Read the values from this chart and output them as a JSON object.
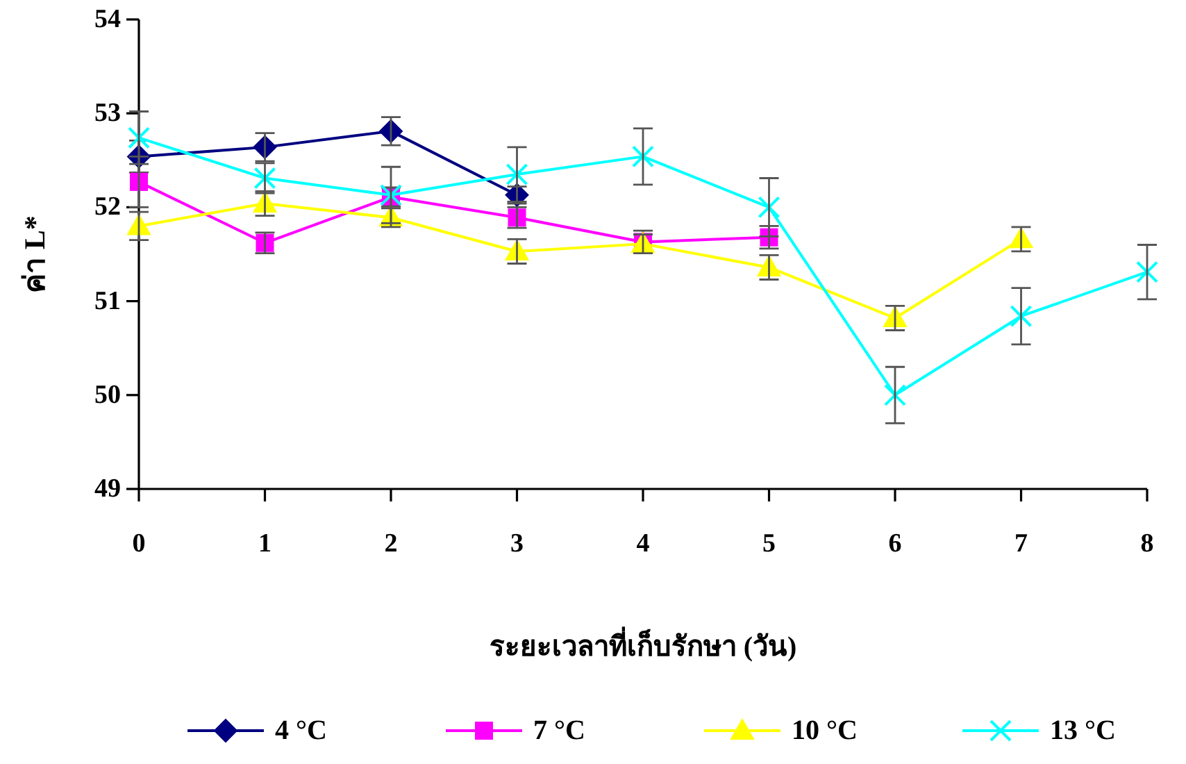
{
  "chart_data": {
    "type": "line",
    "xlabel": "ระยะเวลาที่เก็บรักษา (วัน)",
    "ylabel": "ค่า L*",
    "x": [
      0,
      1,
      2,
      3,
      4,
      5,
      6,
      7,
      8
    ],
    "xlim": [
      0,
      8
    ],
    "xticks": [
      0,
      1,
      2,
      3,
      4,
      5,
      6,
      7,
      8
    ],
    "ylim": [
      49,
      54
    ],
    "yticks": [
      49,
      50,
      51,
      52,
      53,
      54
    ],
    "legend": "bottom",
    "line_style": "solid",
    "series": [
      {
        "name": "4 °C",
        "color": "#000080",
        "marker": "diamond",
        "values": [
          52.54,
          52.64,
          52.81,
          52.13,
          null,
          null,
          null,
          null,
          null
        ],
        "errors": [
          0.17,
          0.15,
          0.15,
          0.09,
          null,
          null,
          null,
          null,
          null
        ]
      },
      {
        "name": "7 °C",
        "color": "#ff00ff",
        "marker": "square",
        "values": [
          52.27,
          51.62,
          52.11,
          51.89,
          51.63,
          51.68,
          null,
          null,
          null
        ],
        "errors": [
          0.27,
          0.11,
          0.1,
          0.11,
          0.12,
          0.12,
          null,
          null,
          null
        ]
      },
      {
        "name": "10 °C",
        "color": "#ffff00",
        "marker": "triangle",
        "values": [
          51.8,
          52.04,
          51.89,
          51.53,
          51.61,
          51.36,
          50.82,
          51.66,
          null
        ],
        "errors": [
          0.15,
          0.13,
          0.1,
          0.13,
          0.1,
          0.13,
          0.13,
          0.13,
          null
        ]
      },
      {
        "name": "13 °C",
        "color": "#00ffff",
        "marker": "cross",
        "values": [
          52.74,
          52.31,
          52.13,
          52.35,
          52.54,
          52.0,
          50.0,
          50.84,
          51.31
        ],
        "errors": [
          0.28,
          0.16,
          0.3,
          0.29,
          0.3,
          0.31,
          0.3,
          0.3,
          0.29
        ]
      }
    ]
  }
}
